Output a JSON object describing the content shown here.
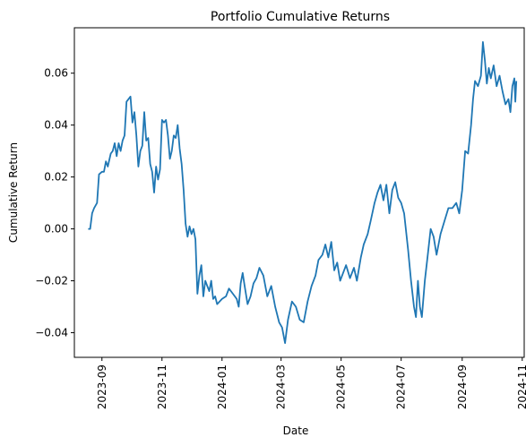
{
  "chart_data": {
    "type": "line",
    "title": "Portfolio Cumulative Returns",
    "xlabel": "Date",
    "ylabel": "Cumulative Return",
    "xlim": [
      "2023-08-04",
      "2024-11-03"
    ],
    "ylim": [
      -0.0495,
      0.0775
    ],
    "xticks": [
      {
        "date": "2023-09-01",
        "label": "2023-09"
      },
      {
        "date": "2023-11-01",
        "label": "2023-11"
      },
      {
        "date": "2024-01-01",
        "label": "2024-01"
      },
      {
        "date": "2024-03-01",
        "label": "2024-03"
      },
      {
        "date": "2024-05-01",
        "label": "2024-05"
      },
      {
        "date": "2024-07-01",
        "label": "2024-07"
      },
      {
        "date": "2024-09-01",
        "label": "2024-09"
      },
      {
        "date": "2024-11-01",
        "label": "2024-11"
      }
    ],
    "yticks": [
      {
        "value": -0.04,
        "label": "−0.04"
      },
      {
        "value": -0.02,
        "label": "−0.02"
      },
      {
        "value": 0.0,
        "label": "0.00"
      },
      {
        "value": 0.02,
        "label": "0.02"
      },
      {
        "value": 0.04,
        "label": "0.04"
      },
      {
        "value": 0.06,
        "label": "0.06"
      }
    ],
    "grid": false,
    "legend": "none",
    "color": "#1f77b4",
    "series": [
      {
        "points": [
          [
            "2023-08-18",
            0.0
          ],
          [
            "2023-08-20",
            0.0
          ],
          [
            "2023-08-22",
            0.006
          ],
          [
            "2023-08-24",
            0.008
          ],
          [
            "2023-08-27",
            0.01
          ],
          [
            "2023-08-29",
            0.021
          ],
          [
            "2023-09-01",
            0.022
          ],
          [
            "2023-09-03",
            0.022
          ],
          [
            "2023-09-05",
            0.026
          ],
          [
            "2023-09-07",
            0.024
          ],
          [
            "2023-09-10",
            0.029
          ],
          [
            "2023-09-12",
            0.03
          ],
          [
            "2023-09-14",
            0.033
          ],
          [
            "2023-09-16",
            0.028
          ],
          [
            "2023-09-18",
            0.033
          ],
          [
            "2023-09-20",
            0.03
          ],
          [
            "2023-09-22",
            0.034
          ],
          [
            "2023-09-24",
            0.036
          ],
          [
            "2023-09-26",
            0.049
          ],
          [
            "2023-09-28",
            0.05
          ],
          [
            "2023-09-30",
            0.051
          ],
          [
            "2023-10-02",
            0.041
          ],
          [
            "2023-10-04",
            0.045
          ],
          [
            "2023-10-06",
            0.036
          ],
          [
            "2023-10-08",
            0.024
          ],
          [
            "2023-10-10",
            0.03
          ],
          [
            "2023-10-12",
            0.032
          ],
          [
            "2023-10-14",
            0.045
          ],
          [
            "2023-10-16",
            0.034
          ],
          [
            "2023-10-18",
            0.035
          ],
          [
            "2023-10-20",
            0.025
          ],
          [
            "2023-10-22",
            0.022
          ],
          [
            "2023-10-24",
            0.014
          ],
          [
            "2023-10-26",
            0.024
          ],
          [
            "2023-10-28",
            0.019
          ],
          [
            "2023-10-30",
            0.023
          ],
          [
            "2023-11-01",
            0.042
          ],
          [
            "2023-11-03",
            0.041
          ],
          [
            "2023-11-05",
            0.042
          ],
          [
            "2023-11-07",
            0.036
          ],
          [
            "2023-11-09",
            0.027
          ],
          [
            "2023-11-11",
            0.03
          ],
          [
            "2023-11-13",
            0.036
          ],
          [
            "2023-11-15",
            0.035
          ],
          [
            "2023-11-17",
            0.04
          ],
          [
            "2023-11-19",
            0.031
          ],
          [
            "2023-11-21",
            0.025
          ],
          [
            "2023-11-23",
            0.015
          ],
          [
            "2023-11-25",
            0.002
          ],
          [
            "2023-11-27",
            -0.003
          ],
          [
            "2023-11-29",
            0.001
          ],
          [
            "2023-12-01",
            -0.002
          ],
          [
            "2023-12-03",
            0.0
          ],
          [
            "2023-12-05",
            -0.004
          ],
          [
            "2023-12-07",
            -0.025
          ],
          [
            "2023-12-09",
            -0.018
          ],
          [
            "2023-12-11",
            -0.014
          ],
          [
            "2023-12-13",
            -0.026
          ],
          [
            "2023-12-15",
            -0.02
          ],
          [
            "2023-12-17",
            -0.022
          ],
          [
            "2023-12-19",
            -0.024
          ],
          [
            "2023-12-21",
            -0.02
          ],
          [
            "2023-12-23",
            -0.027
          ],
          [
            "2023-12-25",
            -0.026
          ],
          [
            "2023-12-27",
            -0.029
          ],
          [
            "2024-01-01",
            -0.027
          ],
          [
            "2024-01-05",
            -0.026
          ],
          [
            "2024-01-08",
            -0.023
          ],
          [
            "2024-01-12",
            -0.025
          ],
          [
            "2024-01-16",
            -0.027
          ],
          [
            "2024-01-18",
            -0.03
          ],
          [
            "2024-01-20",
            -0.021
          ],
          [
            "2024-01-22",
            -0.017
          ],
          [
            "2024-01-24",
            -0.022
          ],
          [
            "2024-01-27",
            -0.029
          ],
          [
            "2024-01-30",
            -0.026
          ],
          [
            "2024-02-02",
            -0.021
          ],
          [
            "2024-02-05",
            -0.019
          ],
          [
            "2024-02-08",
            -0.015
          ],
          [
            "2024-02-12",
            -0.018
          ],
          [
            "2024-02-16",
            -0.026
          ],
          [
            "2024-02-20",
            -0.022
          ],
          [
            "2024-02-24",
            -0.03
          ],
          [
            "2024-02-28",
            -0.036
          ],
          [
            "2024-03-02",
            -0.038
          ],
          [
            "2024-03-05",
            -0.044
          ],
          [
            "2024-03-08",
            -0.035
          ],
          [
            "2024-03-12",
            -0.028
          ],
          [
            "2024-03-16",
            -0.03
          ],
          [
            "2024-03-20",
            -0.035
          ],
          [
            "2024-03-24",
            -0.036
          ],
          [
            "2024-03-28",
            -0.028
          ],
          [
            "2024-04-01",
            -0.022
          ],
          [
            "2024-04-05",
            -0.018
          ],
          [
            "2024-04-08",
            -0.012
          ],
          [
            "2024-04-12",
            -0.01
          ],
          [
            "2024-04-15",
            -0.006
          ],
          [
            "2024-04-18",
            -0.011
          ],
          [
            "2024-04-21",
            -0.005
          ],
          [
            "2024-04-24",
            -0.016
          ],
          [
            "2024-04-27",
            -0.013
          ],
          [
            "2024-04-30",
            -0.02
          ],
          [
            "2024-05-03",
            -0.017
          ],
          [
            "2024-05-06",
            -0.014
          ],
          [
            "2024-05-10",
            -0.019
          ],
          [
            "2024-05-14",
            -0.015
          ],
          [
            "2024-05-17",
            -0.02
          ],
          [
            "2024-05-21",
            -0.011
          ],
          [
            "2024-05-24",
            -0.006
          ],
          [
            "2024-05-28",
            -0.002
          ],
          [
            "2024-05-31",
            0.003
          ],
          [
            "2024-06-04",
            0.01
          ],
          [
            "2024-06-07",
            0.014
          ],
          [
            "2024-06-10",
            0.017
          ],
          [
            "2024-06-13",
            0.011
          ],
          [
            "2024-06-16",
            0.017
          ],
          [
            "2024-06-19",
            0.006
          ],
          [
            "2024-06-22",
            0.015
          ],
          [
            "2024-06-25",
            0.018
          ],
          [
            "2024-06-28",
            0.012
          ],
          [
            "2024-07-01",
            0.01
          ],
          [
            "2024-07-04",
            0.006
          ],
          [
            "2024-07-08",
            -0.008
          ],
          [
            "2024-07-11",
            -0.02
          ],
          [
            "2024-07-14",
            -0.03
          ],
          [
            "2024-07-16",
            -0.034
          ],
          [
            "2024-07-18",
            -0.02
          ],
          [
            "2024-07-20",
            -0.03
          ],
          [
            "2024-07-22",
            -0.034
          ],
          [
            "2024-07-25",
            -0.02
          ],
          [
            "2024-07-28",
            -0.01
          ],
          [
            "2024-07-31",
            0.0
          ],
          [
            "2024-08-03",
            -0.003
          ],
          [
            "2024-08-06",
            -0.01
          ],
          [
            "2024-08-10",
            -0.002
          ],
          [
            "2024-08-14",
            0.003
          ],
          [
            "2024-08-18",
            0.008
          ],
          [
            "2024-08-22",
            0.008
          ],
          [
            "2024-08-26",
            0.01
          ],
          [
            "2024-08-29",
            0.006
          ],
          [
            "2024-09-01",
            0.015
          ],
          [
            "2024-09-04",
            0.03
          ],
          [
            "2024-09-07",
            0.029
          ],
          [
            "2024-09-10",
            0.04
          ],
          [
            "2024-09-12",
            0.05
          ],
          [
            "2024-09-14",
            0.057
          ],
          [
            "2024-09-17",
            0.055
          ],
          [
            "2024-09-20",
            0.059
          ],
          [
            "2024-09-22",
            0.072
          ],
          [
            "2024-09-24",
            0.065
          ],
          [
            "2024-09-26",
            0.056
          ],
          [
            "2024-09-28",
            0.062
          ],
          [
            "2024-09-30",
            0.058
          ],
          [
            "2024-10-03",
            0.063
          ],
          [
            "2024-10-06",
            0.055
          ],
          [
            "2024-10-09",
            0.059
          ],
          [
            "2024-10-12",
            0.053
          ],
          [
            "2024-10-15",
            0.048
          ],
          [
            "2024-10-18",
            0.05
          ],
          [
            "2024-10-20",
            0.045
          ],
          [
            "2024-10-22",
            0.055
          ],
          [
            "2024-10-24",
            0.058
          ],
          [
            "2024-10-25",
            0.049
          ],
          [
            "2024-10-26",
            0.057
          ]
        ]
      }
    ]
  }
}
